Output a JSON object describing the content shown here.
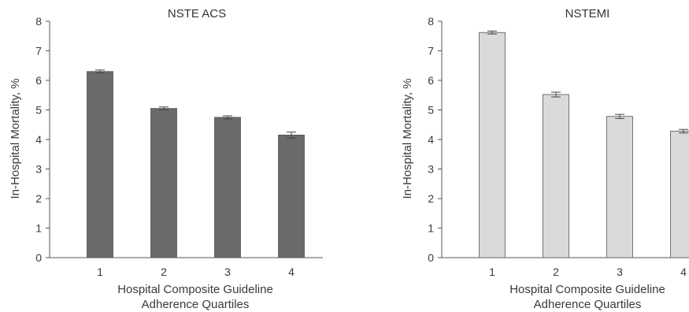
{
  "chart_data": [
    {
      "type": "bar",
      "title": "NSTE ACS",
      "ylabel": "In-Hospital Mortality, %",
      "xlabel": [
        "Hospital Composite Guideline",
        "Adherence Quartiles"
      ],
      "categories": [
        "1",
        "2",
        "3",
        "4"
      ],
      "values": [
        6.3,
        5.05,
        4.75,
        4.15
      ],
      "errors": [
        0.05,
        0.05,
        0.05,
        0.1
      ],
      "ylim": [
        0,
        8
      ],
      "yticks": [
        "0",
        "1",
        "2",
        "3",
        "4",
        "5",
        "6",
        "7",
        "8"
      ],
      "grid": false,
      "bar_color": "#6a6a6a"
    },
    {
      "type": "bar",
      "title": "NSTEMI",
      "ylabel": "In-Hospital Mortality, %",
      "xlabel": [
        "Hospital Composite Guideline",
        "Adherence Quartiles"
      ],
      "categories": [
        "1",
        "2",
        "3",
        "4"
      ],
      "values": [
        7.62,
        5.52,
        4.78,
        4.28
      ],
      "errors": [
        0.05,
        0.08,
        0.07,
        0.06
      ],
      "ylim": [
        0,
        8
      ],
      "yticks": [
        "0",
        "1",
        "2",
        "3",
        "4",
        "5",
        "6",
        "7",
        "8"
      ],
      "grid": false,
      "bar_color": "#dadada"
    }
  ]
}
